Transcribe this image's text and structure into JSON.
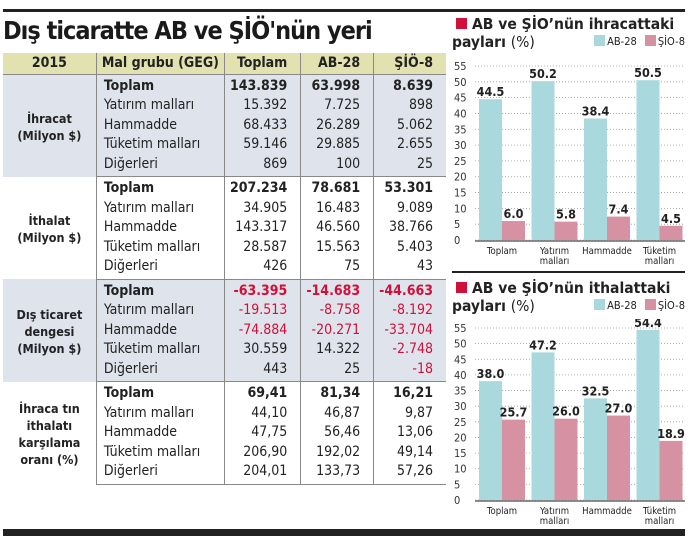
{
  "title": "Dış ticaratte AB ve ŞİÖ'nün yeri",
  "table": {
    "headers": [
      "2015",
      "Mal grubu (GEG)",
      "Toplam",
      "AB-28",
      "ŞİÖ-8"
    ],
    "sections": [
      {
        "label": "İhracat (Milyon $)",
        "rows": [
          [
            "Toplam",
            "143.839",
            "63.998",
            "8.639"
          ],
          [
            "Yatırım malları",
            "15.392",
            "7.725",
            "898"
          ],
          [
            "Hammadde",
            "68.433",
            "26.289",
            "5.062"
          ],
          [
            "Tüketim malları",
            "59.146",
            "29.885",
            "2.655"
          ],
          [
            "Diğerleri",
            "869",
            "100",
            "25"
          ]
        ]
      },
      {
        "label": "İthalat (Milyon $)",
        "rows": [
          [
            "Toplam",
            "207.234",
            "78.681",
            "53.301"
          ],
          [
            "Yatırım malları",
            "34.905",
            "16.483",
            "9.089"
          ],
          [
            "Hammadde",
            "143.317",
            "46.560",
            "38.766"
          ],
          [
            "Tüketim malları",
            "28.587",
            "15.563",
            "5.403"
          ],
          [
            "Diğerleri",
            "426",
            "75",
            "43"
          ]
        ]
      },
      {
        "label": "Dış ticaret dengesi (Milyon $)",
        "rows": [
          [
            "Toplam",
            "-63.395",
            "-14.683",
            "-44.663"
          ],
          [
            "Yatırım malları",
            "-19.513",
            "-8.758",
            "-8.192"
          ],
          [
            "Hammadde",
            "-74.884",
            "-20.271",
            "-33.704"
          ],
          [
            "Tüketim malları",
            "30.559",
            "14.322",
            "-2.748"
          ],
          [
            "Diğerleri",
            "443",
            "25",
            "-18"
          ]
        ]
      },
      {
        "label": "İhraca tın ithalatı karşılama oranı (%)",
        "rows": [
          [
            "Toplam",
            "69,41",
            "81,34",
            "16,21"
          ],
          [
            "Yatırım malları",
            "44,10",
            "46,87",
            "9,87"
          ],
          [
            "Hammadde",
            "47,75",
            "56,46",
            "13,06"
          ],
          [
            "Tüketim malları",
            "206,90",
            "192,02",
            "49,14"
          ],
          [
            "Diğerleri",
            "204,01",
            "133,73",
            "57,26"
          ]
        ]
      }
    ],
    "negative_color": "#d0103a"
  },
  "chart_data": [
    {
      "type": "bar",
      "title": "AB ve ŞİO’nün ihracattaki",
      "title2": "payları",
      "unit": "(%)",
      "categories": [
        "Toplam",
        "Yatırım malları",
        "Hammadde",
        "Tüketim malları"
      ],
      "series": [
        {
          "name": "AB-28",
          "values": [
            44.5,
            50.2,
            38.4,
            50.5
          ],
          "color": "#a9d9dd"
        },
        {
          "name": "ŞİO-8",
          "values": [
            6.0,
            5.8,
            7.4,
            4.5
          ],
          "color": "#d692a3"
        }
      ],
      "ylim": [
        0,
        55
      ],
      "yticks": [
        0,
        5,
        10,
        15,
        20,
        25,
        30,
        35,
        40,
        45,
        50,
        55
      ],
      "grid": true,
      "legend": "top-right"
    },
    {
      "type": "bar",
      "title": "AB ve ŞİO’nün ithalattaki",
      "title2": "payları",
      "unit": "(%)",
      "categories": [
        "Toplam",
        "Yatırım malları",
        "Hammadde",
        "Tüketim malları"
      ],
      "series": [
        {
          "name": "AB-28",
          "values": [
            38.0,
            47.2,
            32.5,
            54.4
          ],
          "color": "#a9d9dd"
        },
        {
          "name": "ŞİO-8",
          "values": [
            25.7,
            26.0,
            27.0,
            18.9
          ],
          "color": "#d692a3"
        }
      ],
      "ylim": [
        0,
        55
      ],
      "yticks": [
        0,
        5,
        10,
        15,
        20,
        25,
        30,
        35,
        40,
        45,
        50,
        55
      ],
      "grid": true,
      "legend": "top-right"
    }
  ]
}
